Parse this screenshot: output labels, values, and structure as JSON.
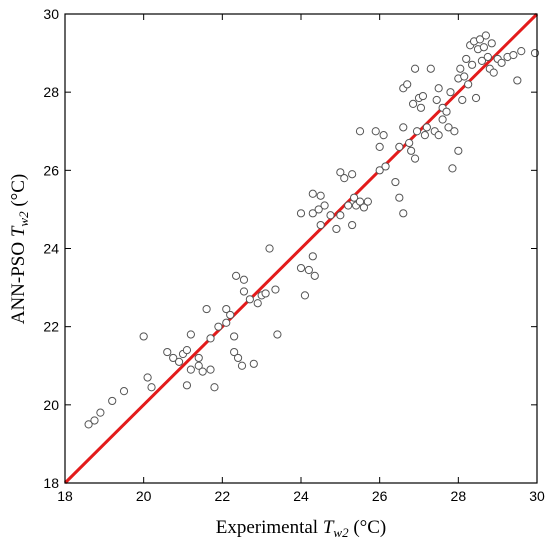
{
  "chart_data": {
    "type": "scatter",
    "xlabel": {
      "prefix": "Experimental ",
      "var": "T",
      "sub": "w2",
      "unit": " (°C)"
    },
    "ylabel": {
      "prefix": "ANN-PSO ",
      "var": "T",
      "sub": "w2",
      "unit": " (°C)"
    },
    "xlim": [
      18,
      30
    ],
    "ylim": [
      18,
      30
    ],
    "xticks": [
      18,
      20,
      22,
      24,
      26,
      28,
      30
    ],
    "yticks": [
      18,
      20,
      22,
      24,
      26,
      28,
      30
    ],
    "grid": false,
    "reference_line": {
      "x": [
        18,
        30
      ],
      "y": [
        18,
        30
      ],
      "color": "#e31b1b"
    },
    "marker": {
      "shape": "circle",
      "stroke": "#555555",
      "fill": "#ffffff"
    },
    "points": [
      [
        18.6,
        19.5
      ],
      [
        18.75,
        19.6
      ],
      [
        18.9,
        19.8
      ],
      [
        19.2,
        20.1
      ],
      [
        19.5,
        20.35
      ],
      [
        20.0,
        21.75
      ],
      [
        20.1,
        20.7
      ],
      [
        20.2,
        20.45
      ],
      [
        20.6,
        21.35
      ],
      [
        20.75,
        21.2
      ],
      [
        20.9,
        21.1
      ],
      [
        21.0,
        21.3
      ],
      [
        21.1,
        21.4
      ],
      [
        21.1,
        20.5
      ],
      [
        21.2,
        20.9
      ],
      [
        21.2,
        21.8
      ],
      [
        21.4,
        21.2
      ],
      [
        21.4,
        21.0
      ],
      [
        21.5,
        20.85
      ],
      [
        21.6,
        22.45
      ],
      [
        21.7,
        20.9
      ],
      [
        21.7,
        21.7
      ],
      [
        21.8,
        20.45
      ],
      [
        21.9,
        22.0
      ],
      [
        22.1,
        22.1
      ],
      [
        22.1,
        22.45
      ],
      [
        22.2,
        22.3
      ],
      [
        22.3,
        21.75
      ],
      [
        22.3,
        21.35
      ],
      [
        22.35,
        23.3
      ],
      [
        22.4,
        21.2
      ],
      [
        22.5,
        21.0
      ],
      [
        22.55,
        23.2
      ],
      [
        22.55,
        22.9
      ],
      [
        22.7,
        22.7
      ],
      [
        22.8,
        21.05
      ],
      [
        22.9,
        22.6
      ],
      [
        23.0,
        22.8
      ],
      [
        23.1,
        22.85
      ],
      [
        23.2,
        24.0
      ],
      [
        23.35,
        22.95
      ],
      [
        23.4,
        21.8
      ],
      [
        24.0,
        24.9
      ],
      [
        24.0,
        23.5
      ],
      [
        24.1,
        22.8
      ],
      [
        24.2,
        23.45
      ],
      [
        24.3,
        23.8
      ],
      [
        24.3,
        24.9
      ],
      [
        24.3,
        25.4
      ],
      [
        24.35,
        23.3
      ],
      [
        24.45,
        25.0
      ],
      [
        24.5,
        25.35
      ],
      [
        24.5,
        24.6
      ],
      [
        24.6,
        25.1
      ],
      [
        24.75,
        24.85
      ],
      [
        24.9,
        24.5
      ],
      [
        25.0,
        24.85
      ],
      [
        25.0,
        25.95
      ],
      [
        25.1,
        25.8
      ],
      [
        25.2,
        25.1
      ],
      [
        25.3,
        24.6
      ],
      [
        25.3,
        25.9
      ],
      [
        25.35,
        25.3
      ],
      [
        25.4,
        25.1
      ],
      [
        25.5,
        27.0
      ],
      [
        25.5,
        25.2
      ],
      [
        25.6,
        25.05
      ],
      [
        25.7,
        25.2
      ],
      [
        25.9,
        27.0
      ],
      [
        26.0,
        26.6
      ],
      [
        26.0,
        26.0
      ],
      [
        26.1,
        26.9
      ],
      [
        26.15,
        26.1
      ],
      [
        26.4,
        25.7
      ],
      [
        26.5,
        25.3
      ],
      [
        26.5,
        26.6
      ],
      [
        26.6,
        24.9
      ],
      [
        26.6,
        28.1
      ],
      [
        26.6,
        27.1
      ],
      [
        26.7,
        28.2
      ],
      [
        26.75,
        26.7
      ],
      [
        26.8,
        26.5
      ],
      [
        26.85,
        27.7
      ],
      [
        26.9,
        28.6
      ],
      [
        26.9,
        26.3
      ],
      [
        26.95,
        27.0
      ],
      [
        27.0,
        27.85
      ],
      [
        27.05,
        27.6
      ],
      [
        27.1,
        27.9
      ],
      [
        27.15,
        26.9
      ],
      [
        27.2,
        27.1
      ],
      [
        27.3,
        28.6
      ],
      [
        27.4,
        27.0
      ],
      [
        27.45,
        27.8
      ],
      [
        27.5,
        26.9
      ],
      [
        27.5,
        28.1
      ],
      [
        27.6,
        27.3
      ],
      [
        27.6,
        27.6
      ],
      [
        27.7,
        27.5
      ],
      [
        27.75,
        27.1
      ],
      [
        27.8,
        28.0
      ],
      [
        27.85,
        26.05
      ],
      [
        27.9,
        27.0
      ],
      [
        28.0,
        26.5
      ],
      [
        28.0,
        28.35
      ],
      [
        28.05,
        28.6
      ],
      [
        28.1,
        27.8
      ],
      [
        28.15,
        28.4
      ],
      [
        28.2,
        28.85
      ],
      [
        28.25,
        28.2
      ],
      [
        28.3,
        29.2
      ],
      [
        28.35,
        28.7
      ],
      [
        28.4,
        29.3
      ],
      [
        28.45,
        27.85
      ],
      [
        28.5,
        29.1
      ],
      [
        28.55,
        29.35
      ],
      [
        28.6,
        28.8
      ],
      [
        28.65,
        29.15
      ],
      [
        28.7,
        29.45
      ],
      [
        28.75,
        28.9
      ],
      [
        28.8,
        28.6
      ],
      [
        28.85,
        29.25
      ],
      [
        28.9,
        28.5
      ],
      [
        29.0,
        28.85
      ],
      [
        29.1,
        28.75
      ],
      [
        29.25,
        28.9
      ],
      [
        29.4,
        28.95
      ],
      [
        29.5,
        28.3
      ],
      [
        29.6,
        29.05
      ],
      [
        29.95,
        29.0
      ]
    ]
  }
}
